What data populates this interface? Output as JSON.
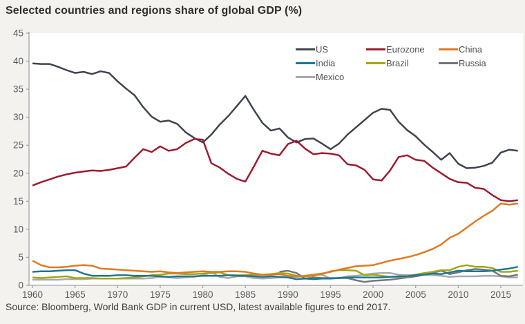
{
  "page": {
    "title": "Selected countries and regions share of global GDP (%)",
    "source": "Source: Bloomberg, World Bank GDP in current USD, latest available figures to end 2017."
  },
  "chart_data": {
    "type": "line",
    "title": "Selected countries and regions share of global GDP (%)",
    "xlabel": "",
    "ylabel": "",
    "ylim": [
      0,
      45
    ],
    "y_ticks": [
      0,
      5,
      10,
      15,
      20,
      25,
      30,
      35,
      40,
      45
    ],
    "x_tick_labels": [
      1960,
      1965,
      1970,
      1975,
      1980,
      1985,
      1990,
      1995,
      2000,
      2005,
      2010,
      2015
    ],
    "grid": false,
    "legend_position": "top-right-inside",
    "axis_color": "#a3a3a3",
    "tick_text_color": "#58595b",
    "plot_bg": "#ffffff",
    "x_years": [
      1960,
      1961,
      1962,
      1963,
      1964,
      1965,
      1966,
      1967,
      1968,
      1969,
      1970,
      1971,
      1972,
      1973,
      1974,
      1975,
      1976,
      1977,
      1978,
      1979,
      1980,
      1981,
      1982,
      1983,
      1984,
      1985,
      1986,
      1987,
      1988,
      1989,
      1990,
      1991,
      1992,
      1993,
      1994,
      1995,
      1996,
      1997,
      1998,
      1999,
      2000,
      2001,
      2002,
      2003,
      2004,
      2005,
      2006,
      2007,
      2008,
      2009,
      2010,
      2011,
      2012,
      2013,
      2014,
      2015,
      2016,
      2017
    ],
    "draw_order": [
      "Mexico",
      "Russia",
      "Brazil",
      "India",
      "China",
      "US",
      "Eurozone"
    ],
    "series": [
      {
        "name": "US",
        "color": "#3e444d",
        "values": [
          39.6,
          39.5,
          39.5,
          39.0,
          38.4,
          37.9,
          38.1,
          37.7,
          38.2,
          37.9,
          36.4,
          35.1,
          33.9,
          31.8,
          30.1,
          29.2,
          29.4,
          28.8,
          27.3,
          26.3,
          25.5,
          26.9,
          28.7,
          30.2,
          32.0,
          33.8,
          31.3,
          29.0,
          27.6,
          28.0,
          26.4,
          25.5,
          26.1,
          26.2,
          25.3,
          24.3,
          25.3,
          26.9,
          28.2,
          29.5,
          30.8,
          31.5,
          31.3,
          29.2,
          27.7,
          26.6,
          25.1,
          23.8,
          22.4,
          23.6,
          21.7,
          20.9,
          21.0,
          21.3,
          21.9,
          23.7,
          24.2,
          24.0
        ]
      },
      {
        "name": "Eurozone",
        "color": "#9c1b30",
        "values": [
          17.8,
          18.4,
          18.9,
          19.4,
          19.8,
          20.1,
          20.3,
          20.5,
          20.4,
          20.6,
          20.9,
          21.2,
          22.8,
          24.3,
          23.8,
          24.8,
          24.0,
          24.3,
          25.4,
          26.1,
          26.0,
          21.8,
          21.0,
          19.9,
          19.0,
          18.5,
          21.2,
          24.0,
          23.5,
          23.2,
          25.2,
          25.8,
          24.4,
          23.4,
          23.6,
          23.5,
          23.2,
          21.6,
          21.4,
          20.6,
          18.9,
          18.7,
          20.5,
          22.9,
          23.2,
          22.4,
          22.2,
          21.0,
          20.0,
          19.0,
          18.4,
          18.3,
          17.4,
          17.2,
          16.1,
          15.2,
          15.0,
          15.2
        ]
      },
      {
        "name": "China",
        "color": "#e2791f",
        "values": [
          4.4,
          3.6,
          3.2,
          3.2,
          3.3,
          3.5,
          3.6,
          3.5,
          3.0,
          2.9,
          2.8,
          2.7,
          2.6,
          2.5,
          2.4,
          2.5,
          2.3,
          2.2,
          2.3,
          2.4,
          2.5,
          2.4,
          2.4,
          2.5,
          2.5,
          2.4,
          2.1,
          1.9,
          1.9,
          2.0,
          1.7,
          1.6,
          1.7,
          1.9,
          2.1,
          2.4,
          2.8,
          3.1,
          3.4,
          3.5,
          3.6,
          4.0,
          4.4,
          4.7,
          5.0,
          5.4,
          5.9,
          6.5,
          7.3,
          8.5,
          9.2,
          10.3,
          11.4,
          12.4,
          13.3,
          14.6,
          14.4,
          14.6
        ]
      },
      {
        "name": "India",
        "color": "#1d7795",
        "values": [
          2.4,
          2.5,
          2.5,
          2.6,
          2.7,
          2.7,
          2.1,
          1.7,
          1.7,
          1.7,
          1.8,
          1.8,
          1.7,
          1.7,
          1.7,
          1.6,
          1.5,
          1.6,
          1.6,
          1.6,
          1.7,
          1.7,
          1.7,
          1.8,
          1.7,
          1.7,
          1.6,
          1.5,
          1.6,
          1.5,
          1.4,
          1.1,
          1.2,
          1.1,
          1.2,
          1.2,
          1.3,
          1.4,
          1.4,
          1.4,
          1.4,
          1.4,
          1.5,
          1.6,
          1.6,
          1.8,
          1.9,
          2.1,
          2.0,
          2.3,
          2.6,
          2.5,
          2.5,
          2.5,
          2.6,
          2.8,
          3.0,
          3.3
        ]
      },
      {
        "name": "Brazil",
        "color": "#a4a614",
        "values": [
          1.4,
          1.3,
          1.4,
          1.5,
          1.6,
          1.3,
          1.3,
          1.3,
          1.2,
          1.2,
          1.2,
          1.3,
          1.4,
          1.6,
          1.8,
          1.9,
          2.1,
          2.1,
          2.0,
          2.0,
          2.1,
          2.2,
          2.3,
          1.8,
          1.8,
          1.8,
          1.9,
          1.9,
          2.0,
          2.2,
          2.1,
          1.7,
          1.6,
          1.7,
          2.0,
          2.5,
          2.7,
          2.7,
          2.6,
          1.8,
          1.9,
          1.7,
          1.5,
          1.5,
          1.5,
          1.9,
          2.2,
          2.4,
          2.7,
          2.7,
          3.3,
          3.6,
          3.3,
          3.3,
          3.1,
          2.4,
          2.4,
          2.6
        ]
      },
      {
        "name": "Russia",
        "color": "#73777c",
        "values": [
          null,
          null,
          null,
          null,
          null,
          null,
          null,
          null,
          null,
          null,
          null,
          null,
          null,
          null,
          null,
          null,
          null,
          null,
          null,
          null,
          null,
          null,
          null,
          null,
          null,
          null,
          null,
          null,
          null,
          2.4,
          2.6,
          2.2,
          1.2,
          1.4,
          1.3,
          1.3,
          1.3,
          1.3,
          0.9,
          0.6,
          0.8,
          0.9,
          1.0,
          1.2,
          1.4,
          1.6,
          1.9,
          2.2,
          2.6,
          2.0,
          2.3,
          2.7,
          2.9,
          2.8,
          2.6,
          1.7,
          1.6,
          1.9
        ]
      },
      {
        "name": "Mexico",
        "color": "#a8aaad",
        "values": [
          1.0,
          1.0,
          1.0,
          1.0,
          1.1,
          1.1,
          1.1,
          1.2,
          1.2,
          1.2,
          1.2,
          1.2,
          1.2,
          1.2,
          1.3,
          1.5,
          1.4,
          1.3,
          1.4,
          1.5,
          1.8,
          2.3,
          1.5,
          1.3,
          1.6,
          1.6,
          1.3,
          1.2,
          1.3,
          1.4,
          1.4,
          1.5,
          1.6,
          1.9,
          1.9,
          1.2,
          1.3,
          1.6,
          1.7,
          1.9,
          2.1,
          2.2,
          2.2,
          1.9,
          1.8,
          1.9,
          1.9,
          1.8,
          1.7,
          1.5,
          1.6,
          1.6,
          1.6,
          1.7,
          1.7,
          1.6,
          1.4,
          1.4
        ]
      }
    ]
  }
}
